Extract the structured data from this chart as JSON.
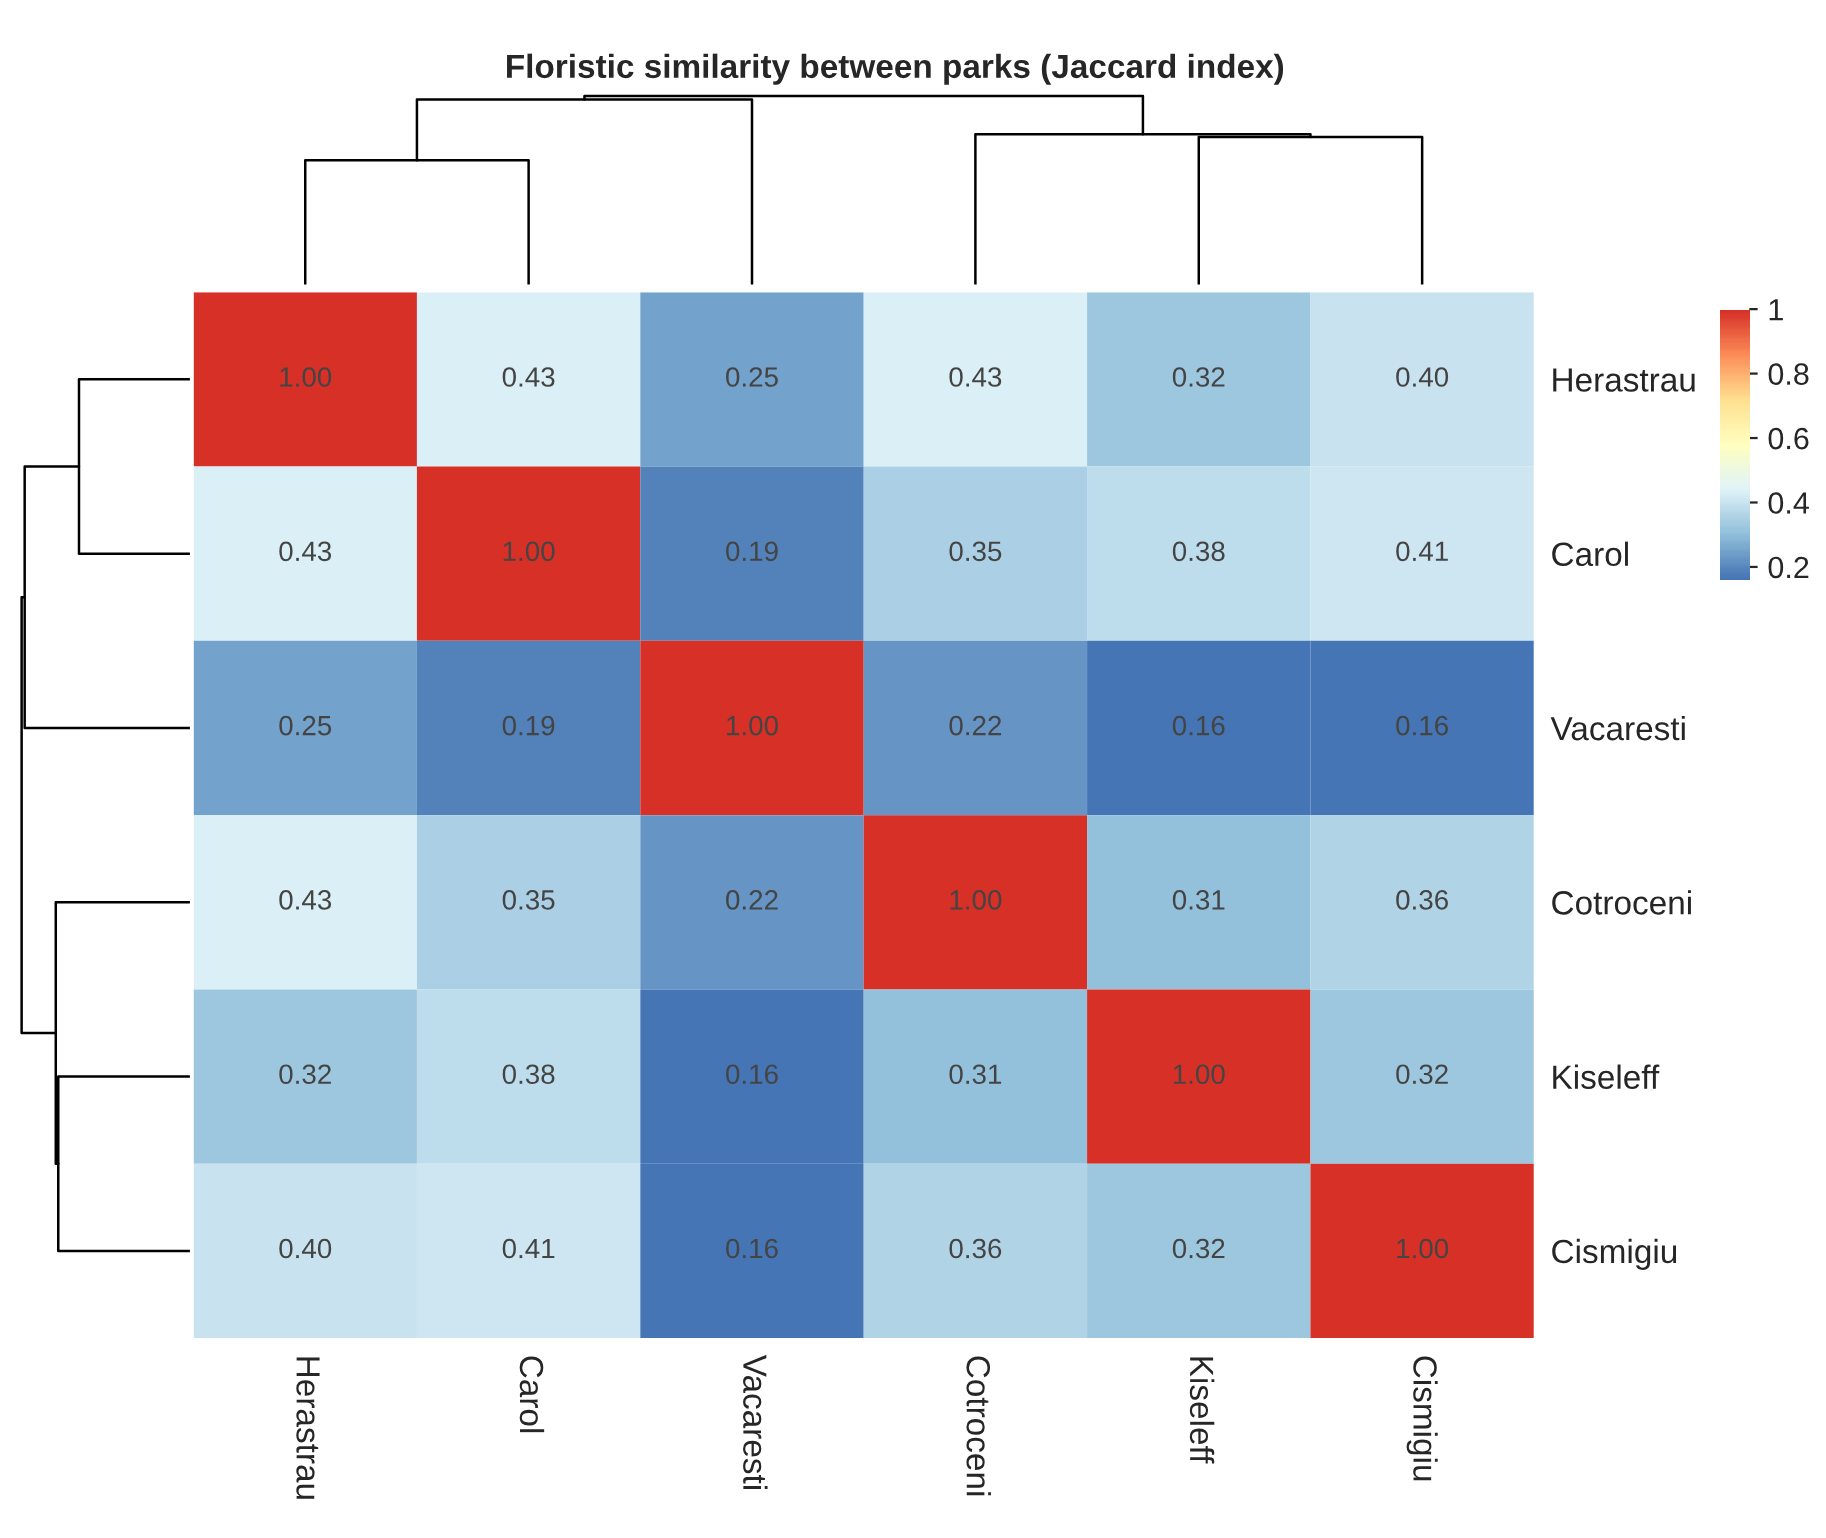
{
  "chart_data": {
    "type": "heatmap",
    "title": "Floristic similarity between parks (Jaccard index)",
    "categories": [
      "Herastrau",
      "Carol",
      "Vacaresti",
      "Cotroceni",
      "Kiseleff",
      "Cismigiu"
    ],
    "y_categories": [
      "Herastrau",
      "Carol",
      "Vacaresti",
      "Cotroceni",
      "Kiseleff",
      "Cismigiu"
    ],
    "cells": [
      [
        1,
        0.43,
        0.25,
        0.43,
        0.32,
        0.4
      ],
      [
        0.43,
        1,
        0.19,
        0.35,
        0.38,
        0.41
      ],
      [
        0.25,
        0.19,
        1,
        0.22,
        0.16,
        0.16
      ],
      [
        0.43,
        0.35,
        0.22,
        1,
        0.31,
        0.36
      ],
      [
        0.32,
        0.38,
        0.16,
        0.31,
        1,
        0.32
      ],
      [
        0.4,
        0.41,
        0.16,
        0.36,
        0.32,
        1
      ]
    ],
    "cell_labels": [
      [
        "1.00",
        "0.43",
        "0.25",
        "0.43",
        "0.32",
        "0.40"
      ],
      [
        "0.43",
        "1.00",
        "0.19",
        "0.35",
        "0.38",
        "0.41"
      ],
      [
        "0.25",
        "0.19",
        "1.00",
        "0.22",
        "0.16",
        "0.16"
      ],
      [
        "0.43",
        "0.35",
        "0.22",
        "1.00",
        "0.31",
        "0.36"
      ],
      [
        "0.32",
        "0.38",
        "0.16",
        "0.31",
        "1.00",
        "0.32"
      ],
      [
        "0.40",
        "0.41",
        "0.16",
        "0.36",
        "0.32",
        "1.00"
      ]
    ],
    "clim": [
      0.16,
      1
    ],
    "cticks": [
      0.2,
      0.4,
      0.6,
      0.8,
      1
    ]
  }
}
